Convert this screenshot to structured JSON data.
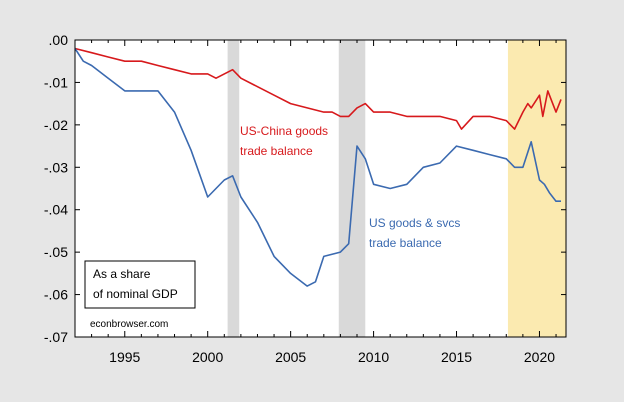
{
  "chart_data": {
    "type": "line",
    "title": "",
    "xlabel": "",
    "ylabel": "",
    "xlim": [
      1992.0,
      2021.6
    ],
    "ylim": [
      -0.07,
      0.0
    ],
    "x_ticks": [
      1995,
      2000,
      2005,
      2010,
      2015,
      2020
    ],
    "x_tick_labels": [
      "1995",
      "2000",
      "2005",
      "2010",
      "2015",
      "2020"
    ],
    "y_ticks": [
      0.0,
      -0.01,
      -0.02,
      -0.03,
      -0.04,
      -0.05,
      -0.06,
      -0.07
    ],
    "y_tick_labels": [
      ".00",
      "-.01",
      "-.02",
      "-.03",
      "-.04",
      "-.05",
      "-.06",
      "-.07"
    ],
    "grid": false,
    "recession_shading": [
      {
        "start": 2001.2,
        "end": 2001.9,
        "color": "#d9d9d9"
      },
      {
        "start": 2007.9,
        "end": 2009.5,
        "color": "#d9d9d9"
      }
    ],
    "highlight_band": {
      "start": 2018.1,
      "end": 2021.6,
      "color": "#fbeab0"
    },
    "series": [
      {
        "name": "US-China goods trade balance",
        "color": "#d7191c",
        "label_lines": [
          "US-China goods",
          "trade balance"
        ],
        "x": [
          1992.0,
          1993.0,
          1994.0,
          1995.0,
          1996.0,
          1997.0,
          1998.0,
          1999.0,
          2000.0,
          2000.5,
          2001.0,
          2001.5,
          2002.0,
          2003.0,
          2004.0,
          2005.0,
          2006.0,
          2007.0,
          2007.5,
          2008.0,
          2008.5,
          2009.0,
          2009.5,
          2010.0,
          2011.0,
          2012.0,
          2013.0,
          2014.0,
          2015.0,
          2015.3,
          2016.0,
          2017.0,
          2018.0,
          2018.5,
          2019.0,
          2019.3,
          2019.5,
          2020.0,
          2020.2,
          2020.5,
          2021.0,
          2021.3
        ],
        "y": [
          -0.002,
          -0.003,
          -0.004,
          -0.005,
          -0.005,
          -0.006,
          -0.007,
          -0.008,
          -0.008,
          -0.009,
          -0.008,
          -0.007,
          -0.009,
          -0.011,
          -0.013,
          -0.015,
          -0.016,
          -0.017,
          -0.017,
          -0.018,
          -0.018,
          -0.016,
          -0.015,
          -0.017,
          -0.017,
          -0.018,
          -0.018,
          -0.018,
          -0.019,
          -0.021,
          -0.018,
          -0.018,
          -0.019,
          -0.021,
          -0.017,
          -0.015,
          -0.016,
          -0.013,
          -0.018,
          -0.012,
          -0.017,
          -0.014
        ]
      },
      {
        "name": "US goods & svcs trade balance",
        "color": "#3b6ab0",
        "label_lines": [
          "US goods & svcs",
          "trade balance"
        ],
        "x": [
          1992.0,
          1992.5,
          1993.0,
          1994.0,
          1995.0,
          1996.0,
          1997.0,
          1998.0,
          1999.0,
          2000.0,
          2001.0,
          2001.5,
          2002.0,
          2003.0,
          2004.0,
          2005.0,
          2006.0,
          2006.5,
          2007.0,
          2008.0,
          2008.5,
          2009.0,
          2009.5,
          2010.0,
          2011.0,
          2012.0,
          2013.0,
          2014.0,
          2015.0,
          2016.0,
          2017.0,
          2018.0,
          2018.5,
          2019.0,
          2019.5,
          2020.0,
          2020.3,
          2020.6,
          2021.0,
          2021.3
        ],
        "y": [
          -0.002,
          -0.005,
          -0.006,
          -0.009,
          -0.012,
          -0.012,
          -0.012,
          -0.017,
          -0.026,
          -0.037,
          -0.033,
          -0.032,
          -0.037,
          -0.043,
          -0.051,
          -0.055,
          -0.058,
          -0.057,
          -0.051,
          -0.05,
          -0.048,
          -0.025,
          -0.028,
          -0.034,
          -0.035,
          -0.034,
          -0.03,
          -0.029,
          -0.025,
          -0.026,
          -0.027,
          -0.028,
          -0.03,
          -0.03,
          -0.024,
          -0.033,
          -0.034,
          -0.036,
          -0.038,
          -0.038
        ]
      }
    ],
    "annotations": {
      "box_lines": [
        "As a share",
        "of nominal GDP"
      ],
      "source": "econbrowser.com"
    }
  }
}
